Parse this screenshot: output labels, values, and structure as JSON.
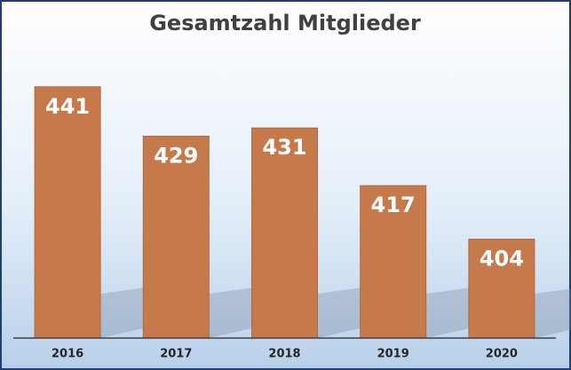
{
  "chart_data": {
    "type": "bar",
    "title": "Gesamtzahl Mitglieder",
    "categories": [
      "2016",
      "2017",
      "2018",
      "2019",
      "2020"
    ],
    "values": [
      441,
      429,
      431,
      417,
      404
    ],
    "color": "#c67a4b",
    "ylim": [
      380,
      450
    ]
  }
}
